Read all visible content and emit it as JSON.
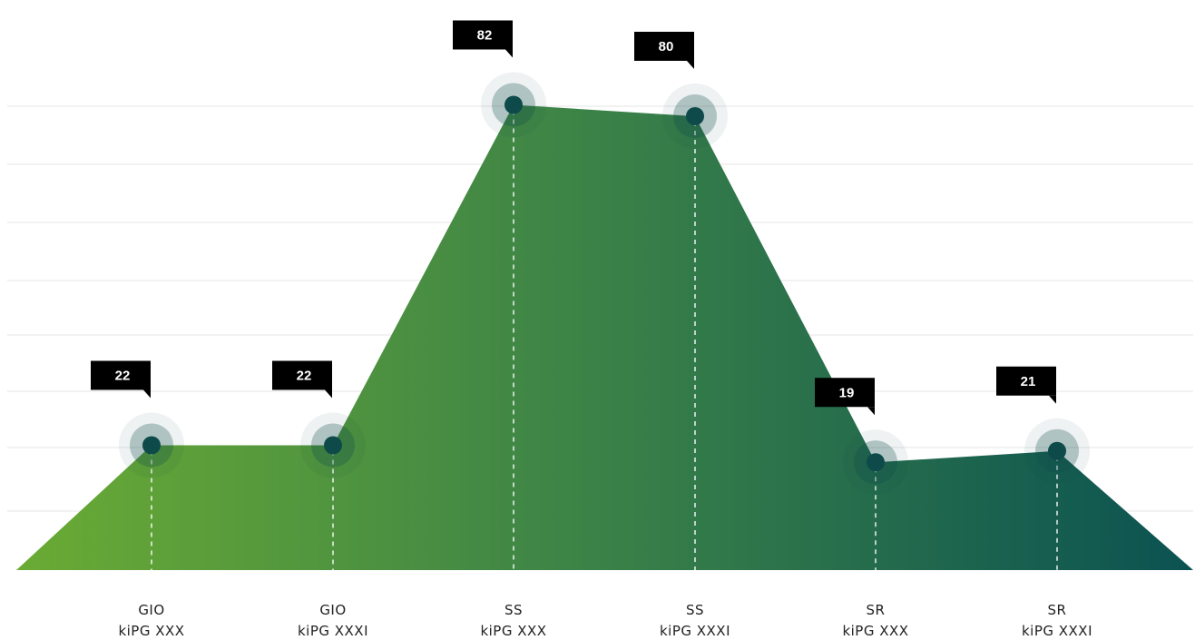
{
  "chart_data": {
    "type": "area",
    "categories": [
      {
        "line1": "GIO",
        "line2": "kiPG XXX"
      },
      {
        "line1": "GIO",
        "line2": "kiPG XXXI"
      },
      {
        "line1": "SS",
        "line2": "kiPG XXX"
      },
      {
        "line1": "SS",
        "line2": "kiPG XXXI"
      },
      {
        "line1": "SR",
        "line2": "kiPG XXX"
      },
      {
        "line1": "SR",
        "line2": "kiPG XXXI"
      }
    ],
    "values": [
      22,
      22,
      82,
      80,
      19,
      21
    ],
    "data_labels": [
      "22",
      "22",
      "82",
      "80",
      "19",
      "21"
    ],
    "ylim": [
      0,
      100
    ],
    "grid": true,
    "title": "",
    "xlabel": "",
    "ylabel": "",
    "colors": {
      "gradient_start": "#6aab34",
      "gradient_mid": "#3a8148",
      "gradient_end": "#0b5252",
      "marker": "#0f4a4a",
      "badge": "#000000",
      "grid": "#e6e6e6"
    }
  }
}
